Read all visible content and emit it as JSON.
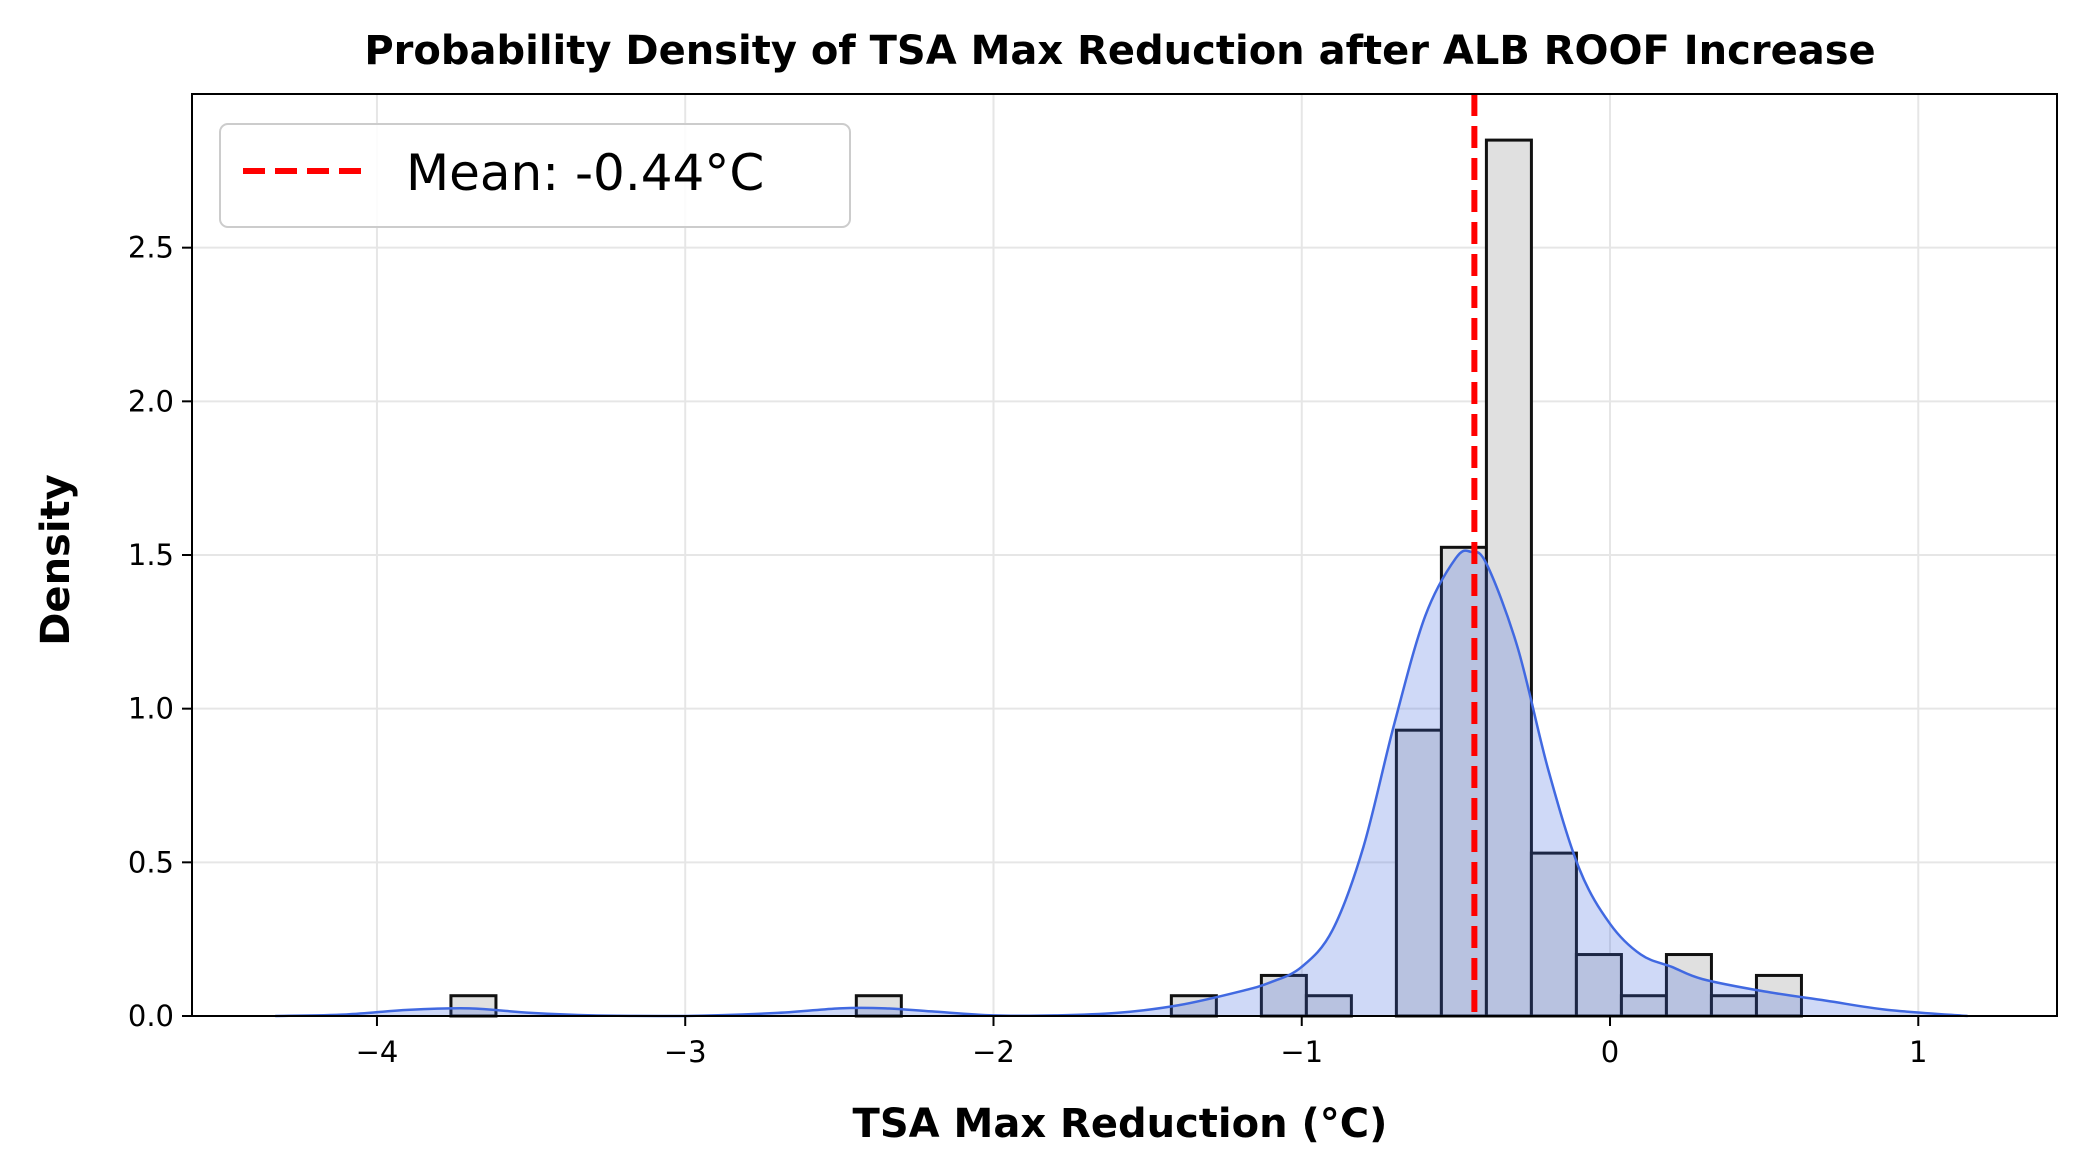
{
  "chart_data": {
    "type": "histogram",
    "title": "Probability Density of TSA Max Reduction after ALB ROOF Increase",
    "xlabel": "TSA Max Reduction (°C)",
    "ylabel": "Density",
    "xlim": [
      -4.6,
      1.45
    ],
    "ylim": [
      0,
      3.0
    ],
    "xticks": [
      -4,
      -3,
      -2,
      -1,
      0,
      1
    ],
    "xtick_labels": [
      "−4",
      "−3",
      "−2",
      "−1",
      "0",
      "1"
    ],
    "yticks": [
      0,
      0.5,
      1,
      1.5,
      2,
      2.5
    ],
    "ytick_labels": [
      "0.0",
      "0.5",
      "1.0",
      "1.5",
      "2.0",
      "2.5"
    ],
    "grid": true,
    "legend_position": "top-left",
    "colors": {
      "bar_fill": "#e0e0e0",
      "bar_edge": "#111111",
      "kde_line": "#4169e1",
      "kde_fill": "#4169e1",
      "mean_line": "#ff0000",
      "grid": "#e6e6e6"
    },
    "bin_width": 0.146,
    "bins": [
      {
        "left": -3.76,
        "density": 0.066
      },
      {
        "left": -2.445,
        "density": 0.066
      },
      {
        "left": -1.423,
        "density": 0.066
      },
      {
        "left": -1.131,
        "density": 0.132
      },
      {
        "left": -0.985,
        "density": 0.066
      },
      {
        "left": -0.693,
        "density": 0.93
      },
      {
        "left": -0.547,
        "density": 1.525
      },
      {
        "left": -0.401,
        "density": 2.85
      },
      {
        "left": -0.255,
        "density": 0.53
      },
      {
        "left": -0.109,
        "density": 0.2
      },
      {
        "left": 0.037,
        "density": 0.066
      },
      {
        "left": 0.183,
        "density": 0.2
      },
      {
        "left": 0.329,
        "density": 0.066
      },
      {
        "left": 0.475,
        "density": 0.132
      }
    ],
    "kde": {
      "x": [
        -4.33,
        -4.1,
        -3.9,
        -3.7,
        -3.5,
        -3.3,
        -3.0,
        -2.7,
        -2.5,
        -2.35,
        -2.2,
        -2.0,
        -1.8,
        -1.6,
        -1.4,
        -1.2,
        -1.1,
        -1.0,
        -0.9,
        -0.8,
        -0.7,
        -0.6,
        -0.5,
        -0.45,
        -0.4,
        -0.3,
        -0.2,
        -0.1,
        0.0,
        0.1,
        0.2,
        0.3,
        0.5,
        0.7,
        0.9,
        1.16
      ],
      "y": [
        0.0,
        0.005,
        0.02,
        0.025,
        0.01,
        0.002,
        0.0,
        0.01,
        0.025,
        0.025,
        0.015,
        0.002,
        0.002,
        0.01,
        0.035,
        0.08,
        0.11,
        0.16,
        0.28,
        0.55,
        0.95,
        1.3,
        1.49,
        1.51,
        1.47,
        1.2,
        0.8,
        0.48,
        0.3,
        0.2,
        0.16,
        0.12,
        0.08,
        0.05,
        0.02,
        0.0
      ]
    },
    "mean": {
      "value": -0.44,
      "label": "Mean: -0.44°C"
    }
  }
}
